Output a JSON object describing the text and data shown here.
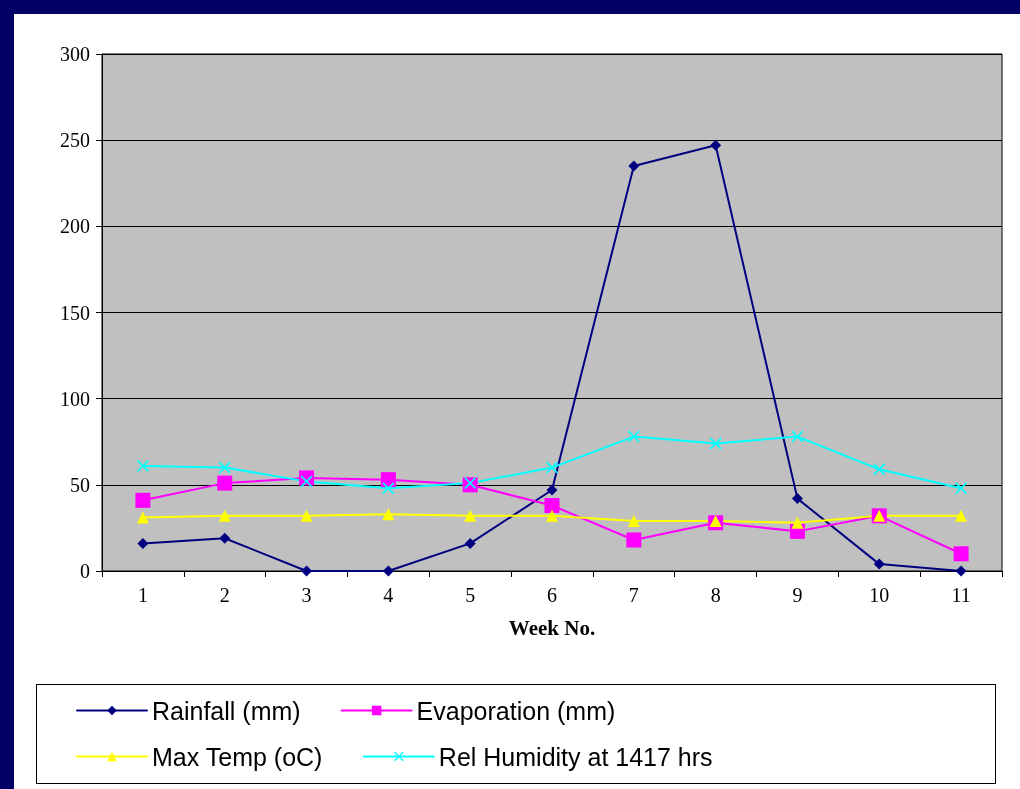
{
  "chart_data": {
    "type": "line",
    "xlabel": "Week No.",
    "categories": [
      "1",
      "2",
      "3",
      "4",
      "5",
      "6",
      "7",
      "8",
      "9",
      "10",
      "11"
    ],
    "series": [
      {
        "name": "Rainfall (mm)",
        "color": "#000080",
        "marker": "diamond",
        "values": [
          16,
          19,
          0,
          0,
          16,
          47,
          235,
          247,
          42,
          4,
          0
        ]
      },
      {
        "name": "Evaporation (mm)",
        "color": "#ff00ff",
        "marker": "square",
        "values": [
          41,
          51,
          54,
          53,
          50,
          38,
          18,
          28,
          23,
          32,
          10
        ]
      },
      {
        "name": "Max Temp (oC)",
        "color": "#ffff00",
        "marker": "triangle",
        "values": [
          31,
          32,
          32,
          33,
          32,
          32,
          29,
          29,
          28,
          32,
          32
        ]
      },
      {
        "name": "Rel Humidity at 1417 hrs",
        "color": "#00ffff",
        "marker": "cross",
        "values": [
          61,
          60,
          52,
          48,
          51,
          60,
          78,
          74,
          78,
          59,
          48
        ]
      }
    ],
    "ylim": [
      0,
      300
    ],
    "yticks": [
      0,
      50,
      100,
      150,
      200,
      250,
      300
    ],
    "grid": "y",
    "legend": "bottom",
    "line_style": "solid"
  }
}
